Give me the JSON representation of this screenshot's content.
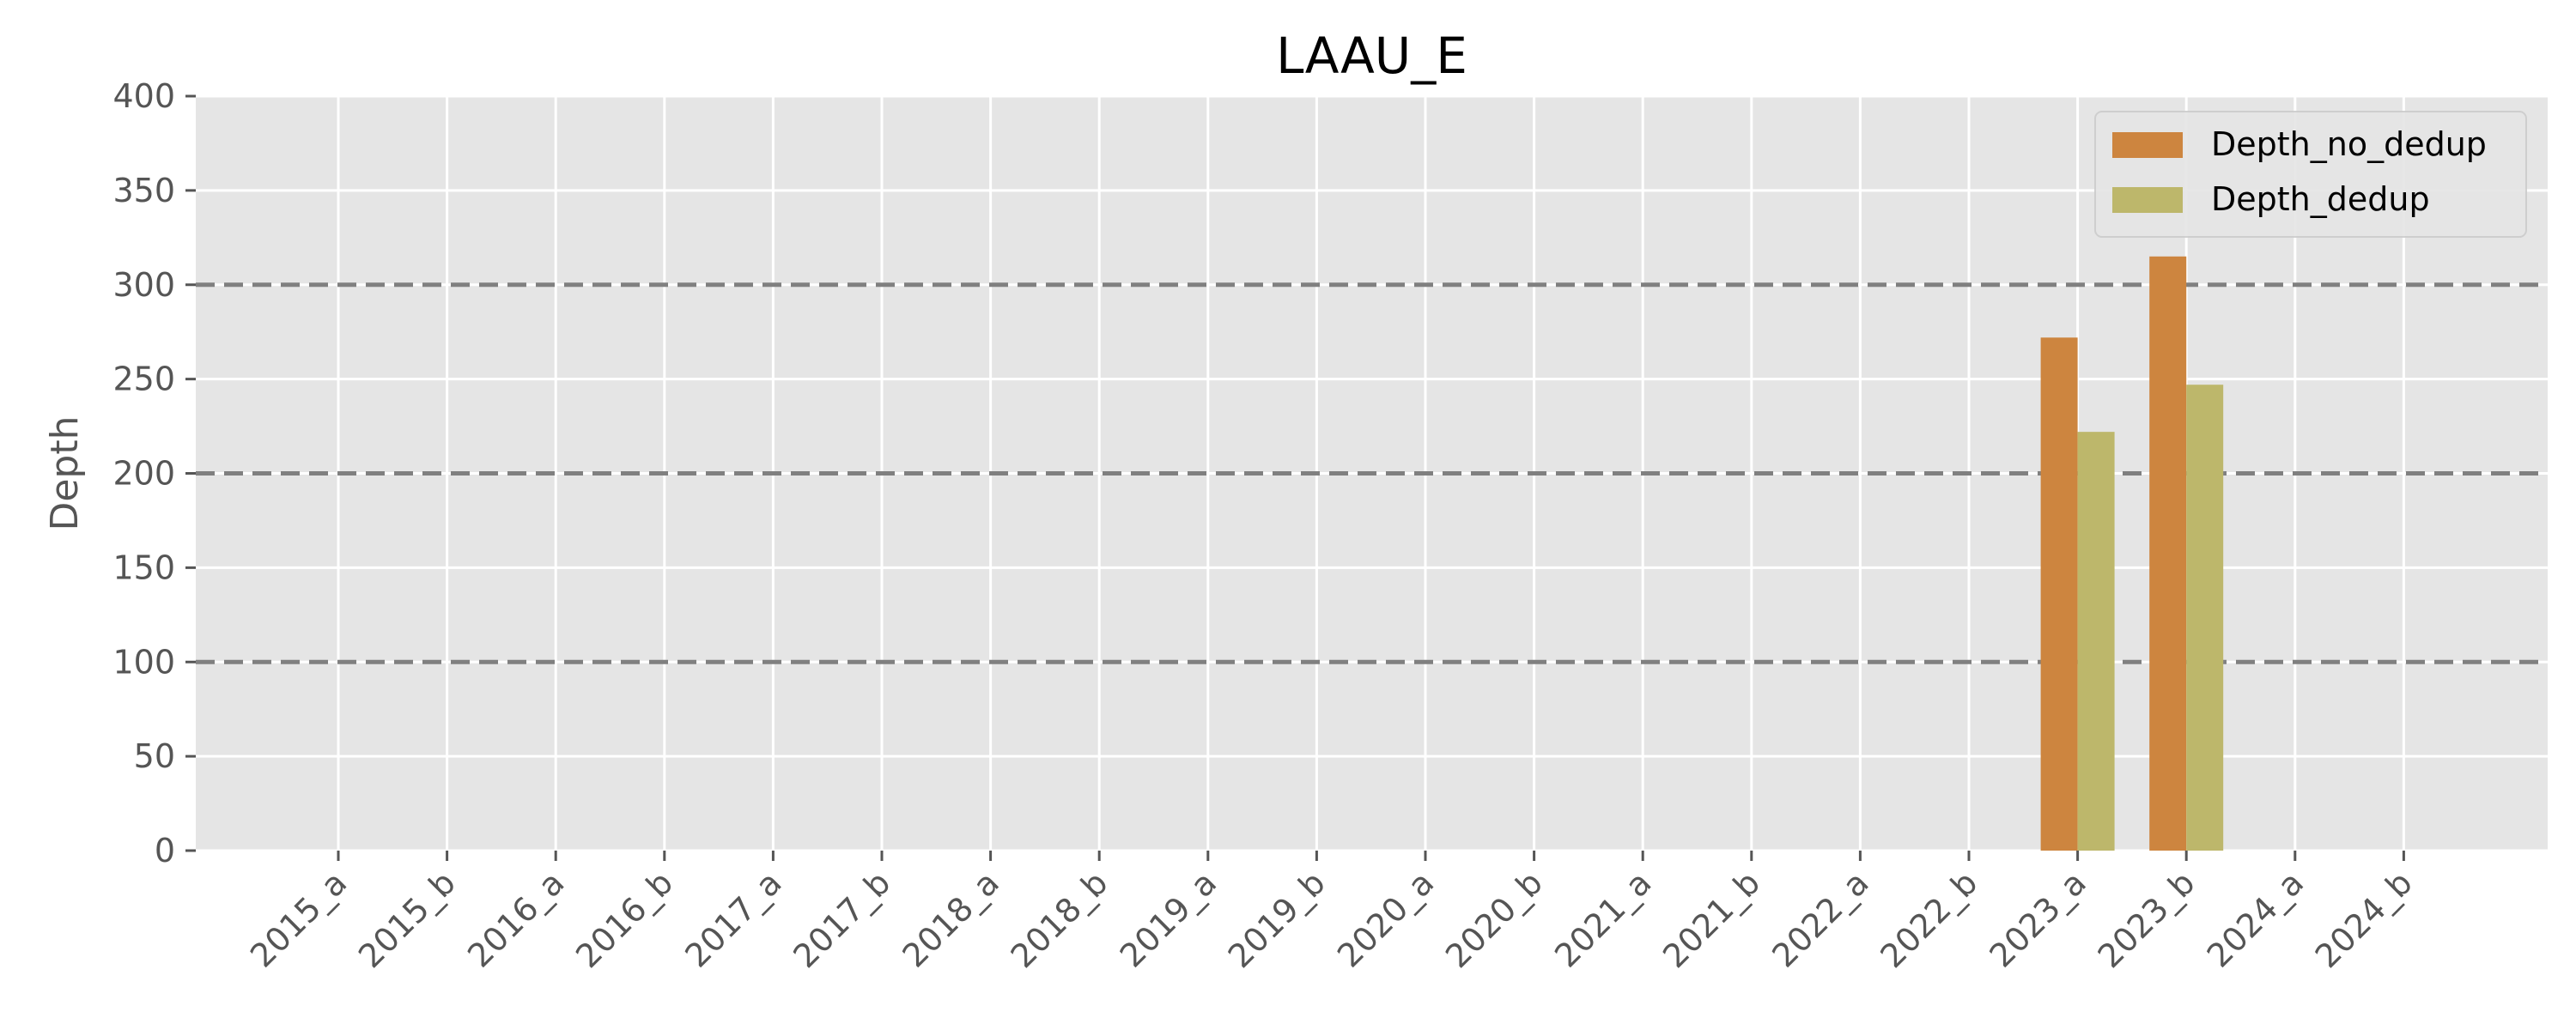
{
  "chart_data": {
    "type": "bar",
    "title": "LAAU_E",
    "xlabel": "",
    "ylabel": "Depth",
    "ylim": [
      0,
      400
    ],
    "yticks": [
      0,
      50,
      100,
      150,
      200,
      250,
      300,
      350,
      400
    ],
    "categories": [
      "2015_a",
      "2015_b",
      "2016_a",
      "2016_b",
      "2017_a",
      "2017_b",
      "2018_a",
      "2018_b",
      "2019_a",
      "2019_b",
      "2020_a",
      "2020_b",
      "2021_a",
      "2021_b",
      "2022_a",
      "2022_b",
      "2023_a",
      "2023_b",
      "2024_a",
      "2024_b"
    ],
    "series": [
      {
        "name": "Depth_no_dedup",
        "color": "#CD853F",
        "values": [
          null,
          null,
          null,
          null,
          null,
          null,
          null,
          null,
          null,
          null,
          null,
          null,
          null,
          null,
          null,
          null,
          272,
          315,
          null,
          null
        ]
      },
      {
        "name": "Depth_dedup",
        "color": "#BDB76B",
        "values": [
          null,
          null,
          null,
          null,
          null,
          null,
          null,
          null,
          null,
          null,
          null,
          null,
          null,
          null,
          null,
          null,
          222,
          247,
          null,
          null
        ]
      }
    ],
    "reference_lines": [
      100,
      200,
      300
    ],
    "grid": true,
    "background": "#E5E5E5",
    "legend_position": "top-right",
    "xtick_rotation": 45
  }
}
